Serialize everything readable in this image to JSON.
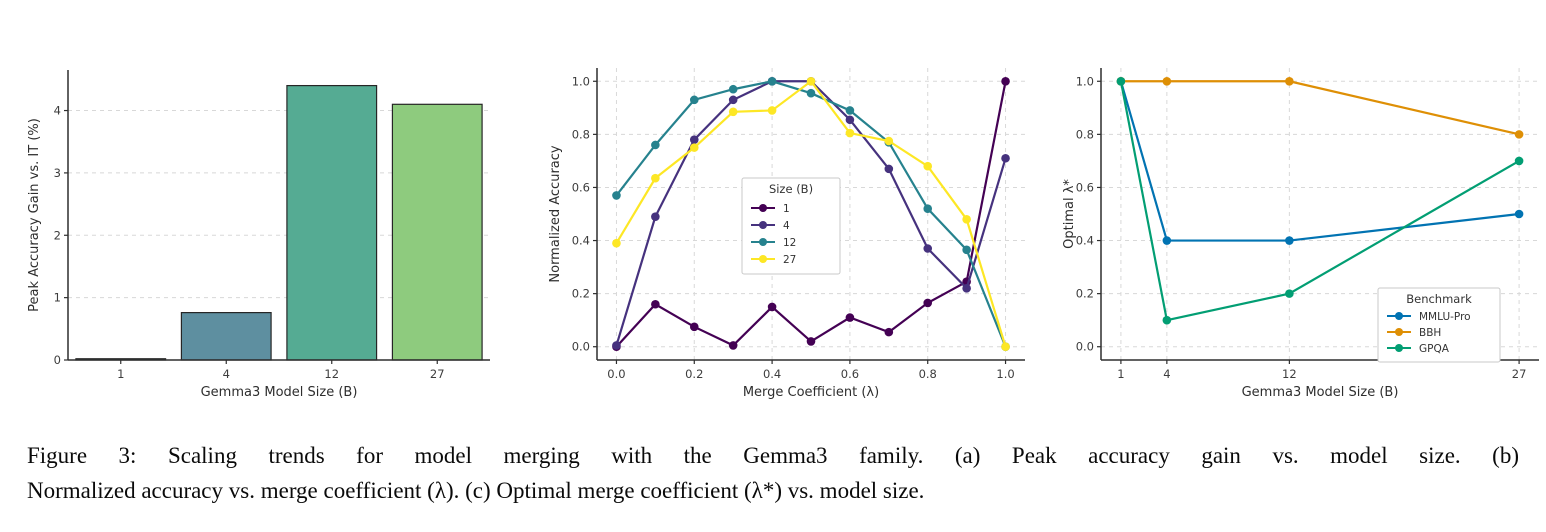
{
  "caption": {
    "line1": "Figure 3: Scaling trends for model merging with the Gemma3 family. (a) Peak accuracy gain vs. model size. (b)",
    "line2": "Normalized accuracy vs. merge coefficient (λ). (c) Optimal merge coefficient (λ*) vs. model size."
  },
  "chart_data": [
    {
      "panel": "a",
      "type": "bar",
      "title": "",
      "xlabel": "Gemma3 Model Size (B)",
      "ylabel": "Peak Accuracy Gain vs. IT (%)",
      "categories": [
        "1",
        "4",
        "12",
        "27"
      ],
      "values": [
        0.02,
        0.76,
        4.4,
        4.1
      ],
      "bar_colors": [
        "#4f7194",
        "#5e8fa0",
        "#55ab93",
        "#8ecb7e"
      ],
      "bar_edge_color": "#262626",
      "yticks": [
        0,
        1,
        2,
        3,
        4
      ],
      "ytick_labels": [
        "0",
        "1",
        "2",
        "3",
        "4"
      ],
      "ylim": [
        0,
        4.65
      ],
      "grid": "horizontal",
      "legend": null
    },
    {
      "panel": "b",
      "type": "line",
      "title": "",
      "xlabel": "Merge Coefficient (λ)",
      "ylabel": "Normalized Accuracy",
      "x": [
        0.0,
        0.1,
        0.2,
        0.3,
        0.4,
        0.5,
        0.6,
        0.7,
        0.8,
        0.9,
        1.0
      ],
      "series": [
        {
          "name": "1",
          "color": "#440154",
          "values": [
            0.0,
            0.16,
            0.075,
            0.005,
            0.15,
            0.02,
            0.11,
            0.055,
            0.165,
            0.245,
            1.0
          ]
        },
        {
          "name": "4",
          "color": "#46327e",
          "values": [
            0.005,
            0.49,
            0.78,
            0.93,
            1.0,
            1.0,
            0.855,
            0.67,
            0.37,
            0.22,
            0.71
          ]
        },
        {
          "name": "12",
          "color": "#26828e",
          "values": [
            0.57,
            0.76,
            0.93,
            0.97,
            1.0,
            0.955,
            0.89,
            0.77,
            0.52,
            0.365,
            0.0
          ]
        },
        {
          "name": "27",
          "color": "#fde725",
          "values": [
            0.39,
            0.635,
            0.75,
            0.885,
            0.89,
            1.0,
            0.805,
            0.775,
            0.68,
            0.48,
            0.0
          ]
        }
      ],
      "legend": {
        "title": "Size (B)",
        "position": "center"
      },
      "xticks": [
        0.0,
        0.2,
        0.4,
        0.6,
        0.8,
        1.0
      ],
      "xtick_labels": [
        "0.0",
        "0.2",
        "0.4",
        "0.6",
        "0.8",
        "1.0"
      ],
      "yticks": [
        0.0,
        0.2,
        0.4,
        0.6,
        0.8,
        1.0
      ],
      "ytick_labels": [
        "0.0",
        "0.2",
        "0.4",
        "0.6",
        "0.8",
        "1.0"
      ],
      "xlim": [
        -0.05,
        1.05
      ],
      "ylim": [
        -0.05,
        1.05
      ],
      "grid": "both"
    },
    {
      "panel": "c",
      "type": "line",
      "title": "",
      "xlabel": "Gemma3 Model Size (B)",
      "ylabel": "Optimal λ*",
      "x": [
        1,
        4,
        12,
        27
      ],
      "series": [
        {
          "name": "MMLU-Pro",
          "color": "#0173b2",
          "values": [
            1.0,
            0.4,
            0.4,
            0.5
          ]
        },
        {
          "name": "BBH",
          "color": "#de8f05",
          "values": [
            1.0,
            1.0,
            1.0,
            0.8
          ]
        },
        {
          "name": "GPQA",
          "color": "#029e73",
          "values": [
            1.0,
            0.1,
            0.2,
            0.7
          ]
        }
      ],
      "legend": {
        "title": "Benchmark",
        "position": "lower-right"
      },
      "xticks": [
        1,
        4,
        12,
        27
      ],
      "xtick_labels": [
        "1",
        "4",
        "12",
        "27"
      ],
      "yticks": [
        0.0,
        0.2,
        0.4,
        0.6,
        0.8,
        1.0
      ],
      "ytick_labels": [
        "0.0",
        "0.2",
        "0.4",
        "0.6",
        "0.8",
        "1.0"
      ],
      "xlim": [
        -0.3,
        28.3
      ],
      "ylim": [
        -0.05,
        1.05
      ],
      "grid": "both"
    }
  ]
}
